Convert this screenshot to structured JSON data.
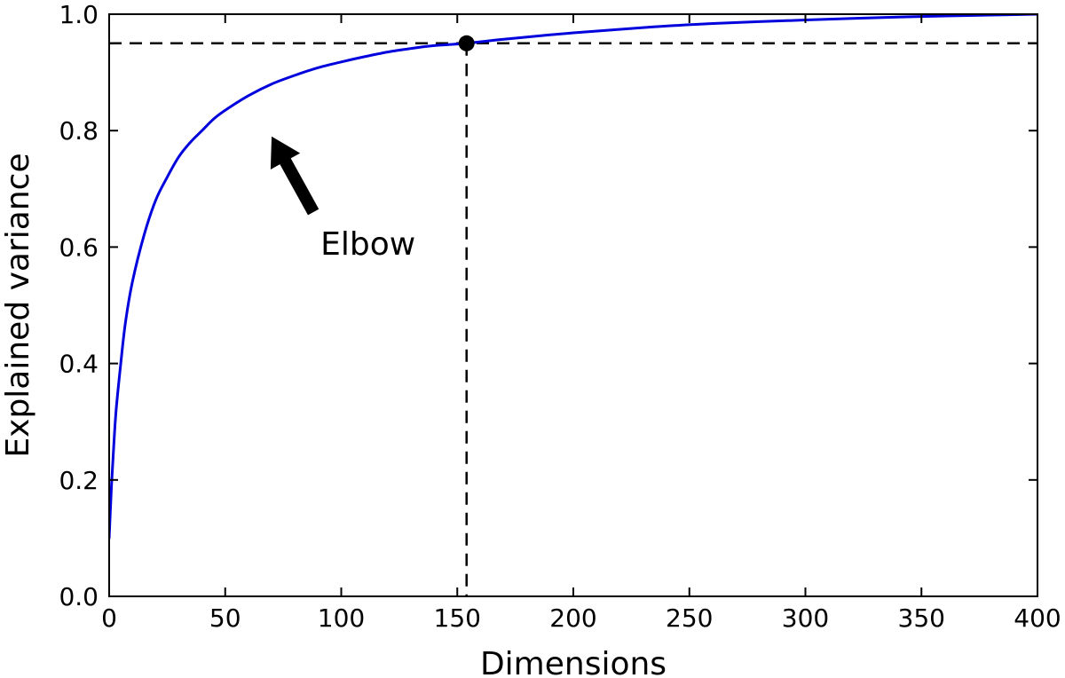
{
  "chart_data": {
    "type": "line",
    "title": "",
    "xlabel": "Dimensions",
    "ylabel": "Explained variance",
    "xlim": [
      0,
      400
    ],
    "ylim": [
      0.0,
      1.0
    ],
    "xticks": [
      0,
      50,
      100,
      150,
      200,
      250,
      300,
      350,
      400
    ],
    "xtick_labels": [
      "0",
      "50",
      "100",
      "150",
      "200",
      "250",
      "300",
      "350",
      "400"
    ],
    "yticks": [
      0.0,
      0.2,
      0.4,
      0.6,
      0.8,
      1.0
    ],
    "ytick_labels": [
      "0.0",
      "0.2",
      "0.4",
      "0.6",
      "0.8",
      "1.0"
    ],
    "grid": false,
    "series": [
      {
        "color": "#0000dd",
        "x": [
          0,
          1,
          2,
          3,
          5,
          7,
          10,
          15,
          20,
          25,
          30,
          35,
          40,
          45,
          50,
          60,
          70,
          80,
          90,
          100,
          110,
          120,
          130,
          140,
          154,
          170,
          200,
          230,
          260,
          300,
          330,
          360,
          400
        ],
        "y": [
          0.1,
          0.19,
          0.26,
          0.32,
          0.4,
          0.47,
          0.54,
          0.62,
          0.68,
          0.72,
          0.755,
          0.78,
          0.8,
          0.82,
          0.835,
          0.86,
          0.88,
          0.895,
          0.908,
          0.918,
          0.927,
          0.935,
          0.941,
          0.946,
          0.95,
          0.957,
          0.968,
          0.977,
          0.984,
          0.99,
          0.994,
          0.997,
          1.0
        ]
      }
    ],
    "reference_point": {
      "x": 154,
      "y": 0.95,
      "color": "#000000"
    },
    "reference_lines": {
      "horizontal_y": 0.95,
      "vertical_x": 154,
      "style": "dashed",
      "color": "#000000"
    },
    "annotation": {
      "text": "Elbow",
      "arrow_tip": {
        "x": 70,
        "y": 0.79
      },
      "arrow_tail": {
        "x": 88,
        "y": 0.66
      }
    }
  }
}
